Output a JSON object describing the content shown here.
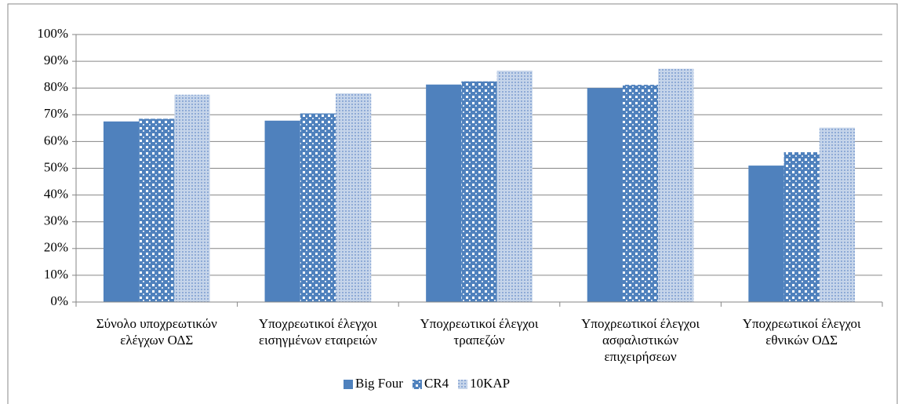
{
  "chart_data": {
    "type": "bar",
    "categories": [
      "Σύνολο υποχρεωτικών ελέγχων ΟΔΣ",
      "Υποχρεωτικοί έλεγχοι εισηγμένων εταιρειών",
      "Υποχρεωτικοί έλεγχοι τραπεζών",
      "Υποχρεωτικοί έλεγχοι ασφαλιστικών επιχειρήσεων",
      "Υποχρεωτικοί έλεγχοι εθνικών ΟΔΣ"
    ],
    "series": [
      {
        "name": "Big Four",
        "color": "#4f81bd",
        "pattern": "solid",
        "values": [
          67.5,
          67.8,
          81.3,
          80,
          51
        ]
      },
      {
        "name": "CR4",
        "color": "#4f81bd",
        "pattern": "checker",
        "values": [
          68.5,
          70.5,
          82.5,
          81.2,
          56
        ]
      },
      {
        "name": "10KAP",
        "color": "#4f81bd",
        "pattern": "dots",
        "values": [
          77.5,
          78,
          86.5,
          87.2,
          65.2
        ]
      }
    ],
    "ylim": [
      0,
      100
    ],
    "yticks": [
      {
        "value": 0,
        "label": "0%"
      },
      {
        "value": 10,
        "label": "10%"
      },
      {
        "value": 20,
        "label": "20%"
      },
      {
        "value": 30,
        "label": "30%"
      },
      {
        "value": 40,
        "label": "40%"
      },
      {
        "value": 50,
        "label": "50%"
      },
      {
        "value": 60,
        "label": "60%"
      },
      {
        "value": 70,
        "label": "70%"
      },
      {
        "value": 80,
        "label": "80%"
      },
      {
        "value": 90,
        "label": "90%"
      },
      {
        "value": 100,
        "label": "100%"
      }
    ],
    "grid": true,
    "legend": "bottom"
  }
}
